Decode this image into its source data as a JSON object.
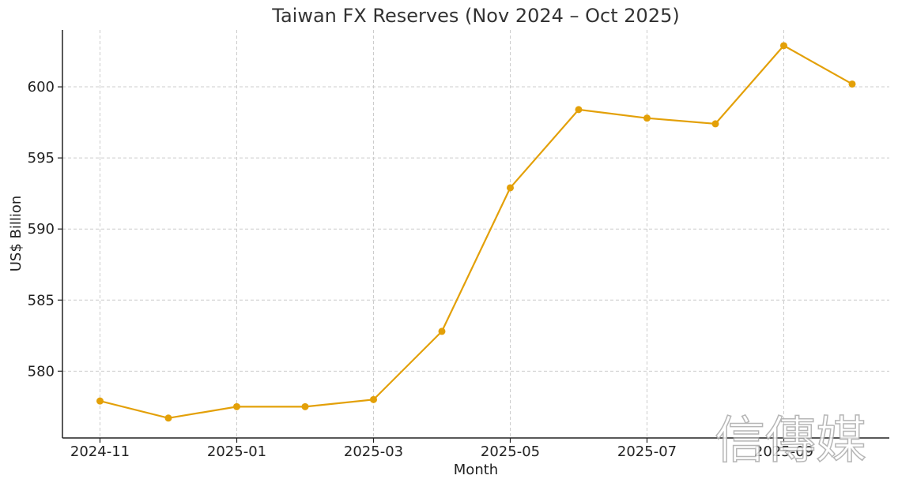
{
  "chart_data": {
    "type": "line",
    "title": "Taiwan FX Reserves (Nov 2024 – Oct 2025)",
    "xlabel": "Month",
    "ylabel": "US$ Billion",
    "x": [
      "2024-11",
      "2024-12",
      "2025-01",
      "2025-02",
      "2025-03",
      "2025-04",
      "2025-05",
      "2025-06",
      "2025-07",
      "2025-08",
      "2025-09",
      "2025-10"
    ],
    "x_tick_labels": [
      "2024-11",
      "2025-01",
      "2025-03",
      "2025-05",
      "2025-07",
      "2025-09"
    ],
    "y_ticks": [
      580,
      585,
      590,
      595,
      600
    ],
    "ylim": [
      575.3,
      604.0
    ],
    "grid": true,
    "series": [
      {
        "values": [
          577.9,
          576.7,
          577.5,
          577.5,
          578.0,
          582.8,
          592.9,
          598.4,
          597.8,
          597.4,
          602.9,
          600.2
        ],
        "color": "#e3a008"
      }
    ]
  },
  "watermark": {
    "text": "信傳媒"
  }
}
